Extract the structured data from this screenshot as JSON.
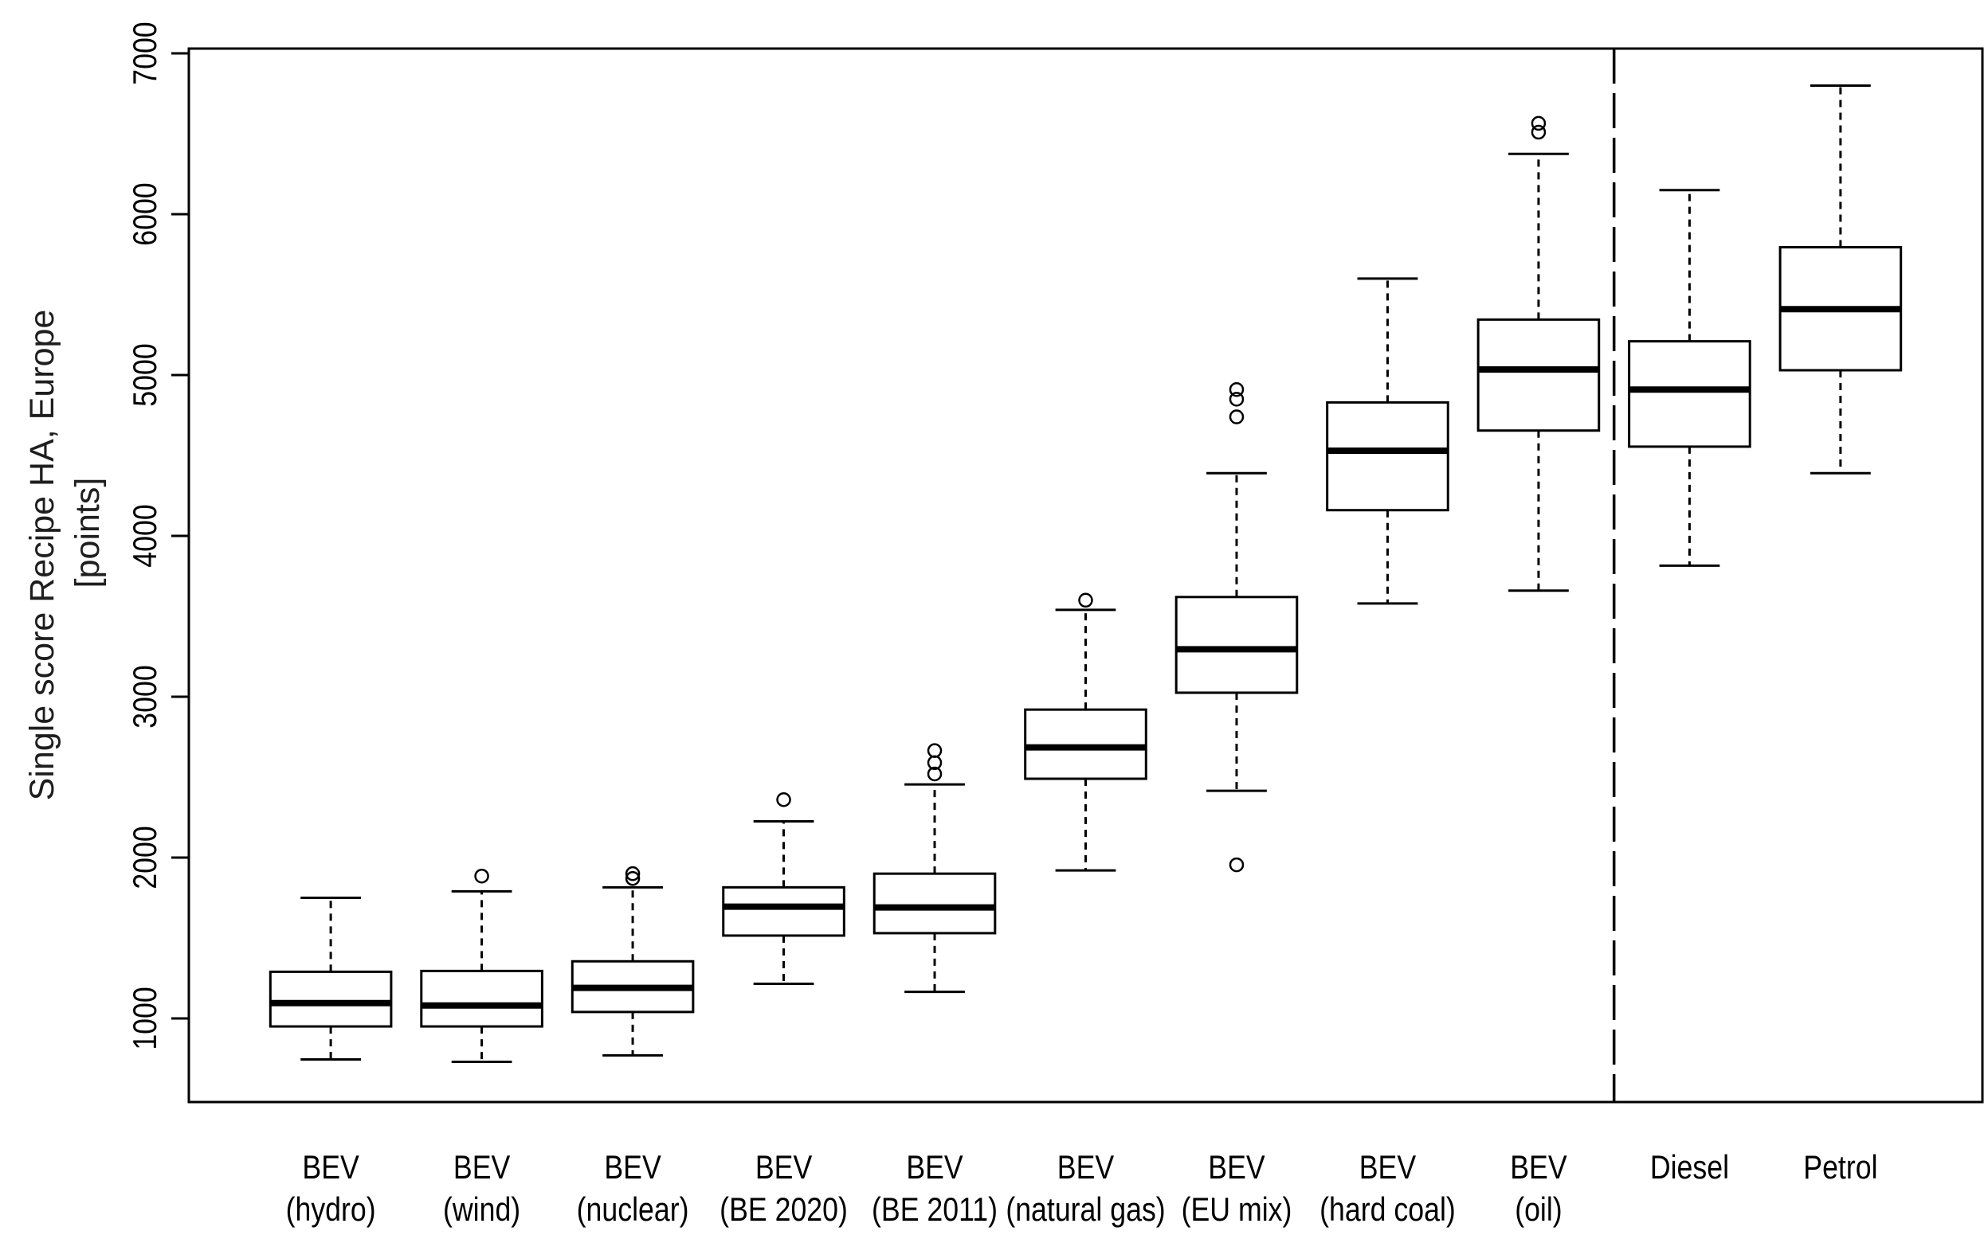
{
  "colors": {
    "ink": "#000000",
    "background": "#ffffff"
  },
  "chart_data": {
    "type": "box",
    "title": "",
    "xlabel": "",
    "ylabel": [
      "Single score Recipe HA, Europe",
      "[points]"
    ],
    "ylim": [
      480,
      7030
    ],
    "yticks": [
      1000,
      2000,
      3000,
      4000,
      5000,
      6000,
      7000
    ],
    "grid": false,
    "categories": [
      [
        "BEV",
        "(hydro)"
      ],
      [
        "BEV",
        "(wind)"
      ],
      [
        "BEV",
        "(nuclear)"
      ],
      [
        "BEV",
        "(BE 2020)"
      ],
      [
        "BEV",
        "(BE 2011)"
      ],
      [
        "BEV",
        "(natural gas)"
      ],
      [
        "BEV",
        "(EU mix)"
      ],
      [
        "BEV",
        "(hard coal)"
      ],
      [
        "BEV",
        "(oil)"
      ],
      [
        "Diesel"
      ],
      [
        "Petrol"
      ]
    ],
    "boxes": [
      {
        "whisker_low": 745,
        "q1": 950,
        "median": 1095,
        "q3": 1290,
        "whisker_high": 1750,
        "outliers": []
      },
      {
        "whisker_low": 730,
        "q1": 950,
        "median": 1080,
        "q3": 1295,
        "whisker_high": 1790,
        "outliers": [
          1885
        ]
      },
      {
        "whisker_low": 770,
        "q1": 1040,
        "median": 1190,
        "q3": 1355,
        "whisker_high": 1815,
        "outliers": [
          1870,
          1900
        ]
      },
      {
        "whisker_low": 1215,
        "q1": 1515,
        "median": 1695,
        "q3": 1815,
        "whisker_high": 2225,
        "outliers": [
          2360
        ]
      },
      {
        "whisker_low": 1165,
        "q1": 1530,
        "median": 1690,
        "q3": 1900,
        "whisker_high": 2455,
        "outliers": [
          2520,
          2590,
          2665
        ]
      },
      {
        "whisker_low": 1920,
        "q1": 2490,
        "median": 2685,
        "q3": 2920,
        "whisker_high": 3540,
        "outliers": [
          3600
        ]
      },
      {
        "whisker_low": 2415,
        "q1": 3025,
        "median": 3295,
        "q3": 3620,
        "whisker_high": 4390,
        "outliers": [
          1955,
          4740,
          4850,
          4910
        ]
      },
      {
        "whisker_low": 3580,
        "q1": 4160,
        "median": 4530,
        "q3": 4830,
        "whisker_high": 5600,
        "outliers": []
      },
      {
        "whisker_low": 3660,
        "q1": 4655,
        "median": 5035,
        "q3": 5345,
        "whisker_high": 6375,
        "outliers": [
          6510,
          6565
        ]
      },
      {
        "whisker_low": 3815,
        "q1": 4555,
        "median": 4910,
        "q3": 5210,
        "whisker_high": 6150,
        "outliers": []
      },
      {
        "whisker_low": 4390,
        "q1": 5030,
        "median": 5410,
        "q3": 5795,
        "whisker_high": 6800,
        "outliers": []
      }
    ],
    "separator_x": 9.5
  }
}
